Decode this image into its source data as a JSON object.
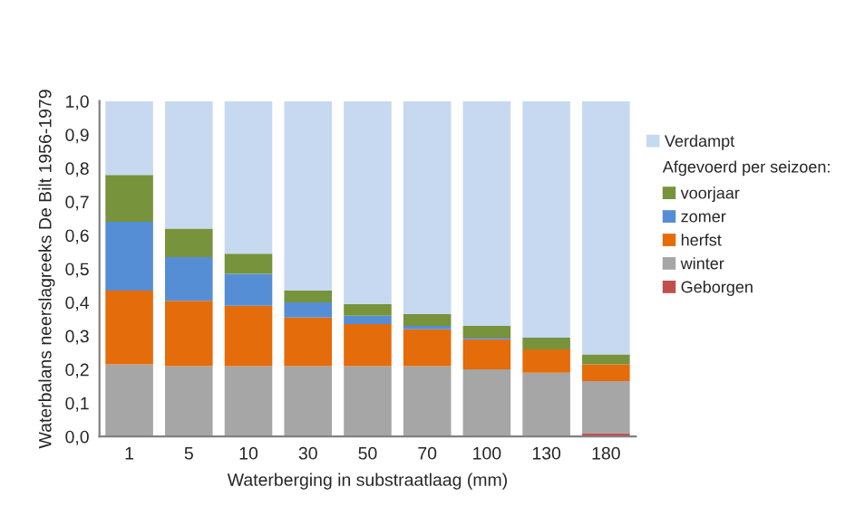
{
  "chart_data": {
    "type": "bar",
    "stacked": true,
    "xlabel": "Waterberging in substraatlaag (mm)",
    "ylabel": "Waterbalans neerslagreeks De Bilt 1956-1979",
    "categories": [
      "1",
      "5",
      "10",
      "30",
      "50",
      "70",
      "100",
      "130",
      "180"
    ],
    "series": [
      {
        "name": "Geborgen",
        "color": "#c0504d",
        "values": [
          0,
          0,
          0,
          0,
          0,
          0,
          0,
          0,
          0.01
        ]
      },
      {
        "name": "winter",
        "color": "#a6a6a6",
        "values": [
          0.215,
          0.21,
          0.21,
          0.21,
          0.21,
          0.21,
          0.2,
          0.19,
          0.155
        ]
      },
      {
        "name": "herfst",
        "color": "#e46c0a",
        "values": [
          0.22,
          0.195,
          0.18,
          0.145,
          0.125,
          0.11,
          0.09,
          0.07,
          0.05
        ]
      },
      {
        "name": "zomer",
        "color": "#558ed5",
        "values": [
          0.205,
          0.13,
          0.095,
          0.045,
          0.025,
          0.01,
          0.005,
          0,
          0
        ]
      },
      {
        "name": "voorjaar",
        "color": "#77933c",
        "values": [
          0.14,
          0.085,
          0.06,
          0.035,
          0.035,
          0.035,
          0.035,
          0.035,
          0.03
        ]
      },
      {
        "name": "Verdampt",
        "color": "#c6d9f1",
        "values": [
          0.22,
          0.38,
          0.455,
          0.565,
          0.605,
          0.635,
          0.67,
          0.705,
          0.755
        ]
      }
    ],
    "ylim": [
      0,
      1
    ],
    "yticks": [
      {
        "value": 0,
        "label": "0,0"
      },
      {
        "value": 0.1,
        "label": "0,1"
      },
      {
        "value": 0.2,
        "label": "0,2"
      },
      {
        "value": 0.3,
        "label": "0,3"
      },
      {
        "value": 0.4,
        "label": "0,4"
      },
      {
        "value": 0.5,
        "label": "0,5"
      },
      {
        "value": 0.6,
        "label": "0,6"
      },
      {
        "value": 0.7,
        "label": "0,7"
      },
      {
        "value": 0.8,
        "label": "0,8"
      },
      {
        "value": 0.9,
        "label": "0,9"
      },
      {
        "value": 1,
        "label": "1,0"
      }
    ],
    "annotations": [
      "Afgevoerd per seizoen:"
    ],
    "legend": "right",
    "grid": false
  }
}
